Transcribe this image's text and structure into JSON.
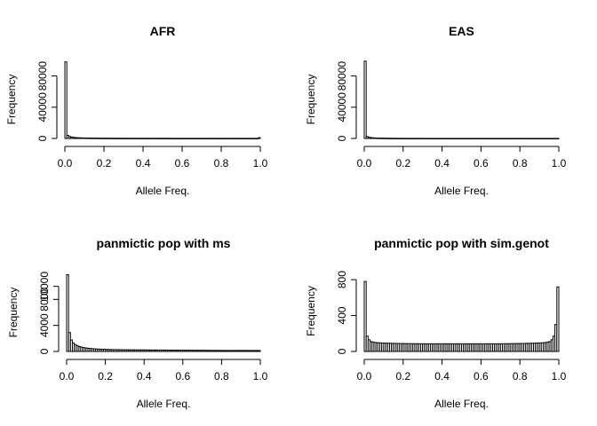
{
  "chart_data": [
    {
      "type": "bar",
      "title": "AFR",
      "xlabel": "Allele Freq.",
      "ylabel": "Frequency",
      "xlim": [
        0,
        1
      ],
      "ylim": [
        0,
        100000
      ],
      "xticks": [
        "0.0",
        "0.2",
        "0.4",
        "0.6",
        "0.8",
        "1.0"
      ],
      "yticks": [
        "0",
        "40000",
        "80000"
      ],
      "bin_width": 0.01,
      "values": [
        98000,
        4000,
        2500,
        1800,
        1400,
        1100,
        900,
        800,
        700,
        600,
        550,
        500,
        450,
        400,
        380,
        360,
        340,
        320,
        300,
        290,
        280,
        270,
        260,
        250,
        240,
        230,
        220,
        210,
        200,
        195,
        190,
        185,
        180,
        175,
        170,
        165,
        160,
        155,
        150,
        148,
        146,
        144,
        142,
        140,
        138,
        136,
        134,
        132,
        130,
        128,
        126,
        124,
        122,
        120,
        118,
        116,
        114,
        112,
        110,
        108,
        106,
        104,
        102,
        100,
        100,
        100,
        100,
        100,
        100,
        100,
        100,
        100,
        100,
        100,
        100,
        100,
        100,
        100,
        100,
        100,
        100,
        100,
        100,
        100,
        100,
        100,
        100,
        100,
        100,
        100,
        100,
        100,
        100,
        100,
        100,
        100,
        100,
        100,
        100,
        1000
      ]
    },
    {
      "type": "bar",
      "title": "EAS",
      "xlabel": "Allele Freq.",
      "ylabel": "Frequency",
      "xlim": [
        0,
        1
      ],
      "ylim": [
        0,
        100000
      ],
      "xticks": [
        "0.0",
        "0.2",
        "0.4",
        "0.6",
        "0.8",
        "1.0"
      ],
      "yticks": [
        "0",
        "40000",
        "80000"
      ],
      "bin_width": 0.01,
      "values": [
        99000,
        2500,
        1500,
        1000,
        800,
        650,
        550,
        450,
        400,
        350,
        300,
        250,
        200,
        180,
        160,
        140,
        120,
        110,
        100,
        90,
        85,
        80,
        75,
        70,
        65,
        60,
        58,
        56,
        54,
        52,
        50,
        48,
        46,
        44,
        42,
        40,
        38,
        36,
        34,
        32,
        30,
        30,
        30,
        30,
        30,
        30,
        30,
        30,
        30,
        30,
        30,
        30,
        30,
        30,
        30,
        30,
        30,
        30,
        30,
        30,
        30,
        30,
        30,
        30,
        30,
        30,
        30,
        30,
        30,
        30,
        30,
        30,
        30,
        30,
        30,
        30,
        30,
        30,
        30,
        30,
        30,
        30,
        30,
        30,
        30,
        30,
        30,
        30,
        30,
        30,
        30,
        30,
        30,
        30,
        30,
        30,
        30,
        30,
        30,
        30
      ]
    },
    {
      "type": "bar",
      "title": "panmictic pop with ms",
      "xlabel": "Allele Freq.",
      "ylabel": "Frequency",
      "xlim": [
        0,
        1
      ],
      "ylim": [
        0,
        12000
      ],
      "xticks": [
        "0.0",
        "0.2",
        "0.4",
        "0.6",
        "0.8",
        "1.0"
      ],
      "yticks": [
        "0",
        "4000",
        "8000",
        "10000"
      ],
      "bin_width": 0.01,
      "values": [
        11800,
        2900,
        1750,
        1300,
        1050,
        880,
        760,
        680,
        610,
        560,
        520,
        480,
        450,
        420,
        400,
        380,
        360,
        345,
        330,
        320,
        310,
        300,
        290,
        285,
        280,
        275,
        270,
        265,
        260,
        255,
        250,
        248,
        246,
        244,
        242,
        240,
        238,
        236,
        234,
        232,
        230,
        228,
        226,
        224,
        222,
        220,
        218,
        216,
        214,
        212,
        210,
        208,
        206,
        204,
        202,
        200,
        198,
        196,
        194,
        192,
        190,
        188,
        186,
        184,
        182,
        180,
        178,
        176,
        174,
        172,
        170,
        168,
        166,
        164,
        162,
        160,
        158,
        156,
        154,
        152,
        150,
        150,
        150,
        150,
        150,
        150,
        150,
        150,
        150,
        150,
        150,
        150,
        150,
        150,
        150,
        150,
        150,
        150,
        150,
        150
      ]
    },
    {
      "type": "bar",
      "title": "panmictic pop with sim.genot",
      "xlabel": "Allele Freq.",
      "ylabel": "Frequency",
      "xlim": [
        0,
        1
      ],
      "ylim": [
        0,
        900
      ],
      "xticks": [
        "0.0",
        "0.2",
        "0.4",
        "0.6",
        "0.8",
        "1.0"
      ],
      "yticks": [
        "0",
        "400",
        "800"
      ],
      "bin_width": 0.01,
      "values": [
        780,
        170,
        130,
        110,
        105,
        100,
        98,
        96,
        95,
        94,
        93,
        92,
        91,
        91,
        90,
        90,
        89,
        89,
        88,
        88,
        88,
        87,
        87,
        87,
        86,
        86,
        86,
        86,
        85,
        85,
        85,
        85,
        85,
        85,
        85,
        85,
        85,
        85,
        85,
        85,
        85,
        85,
        85,
        85,
        85,
        85,
        85,
        85,
        85,
        85,
        85,
        85,
        85,
        85,
        85,
        85,
        85,
        85,
        85,
        85,
        85,
        85,
        85,
        85,
        85,
        85,
        85,
        85,
        85,
        85,
        85,
        86,
        86,
        86,
        86,
        87,
        87,
        87,
        88,
        88,
        88,
        89,
        89,
        90,
        90,
        91,
        91,
        92,
        93,
        94,
        95,
        96,
        98,
        100,
        105,
        110,
        130,
        170,
        300,
        720
      ]
    }
  ]
}
